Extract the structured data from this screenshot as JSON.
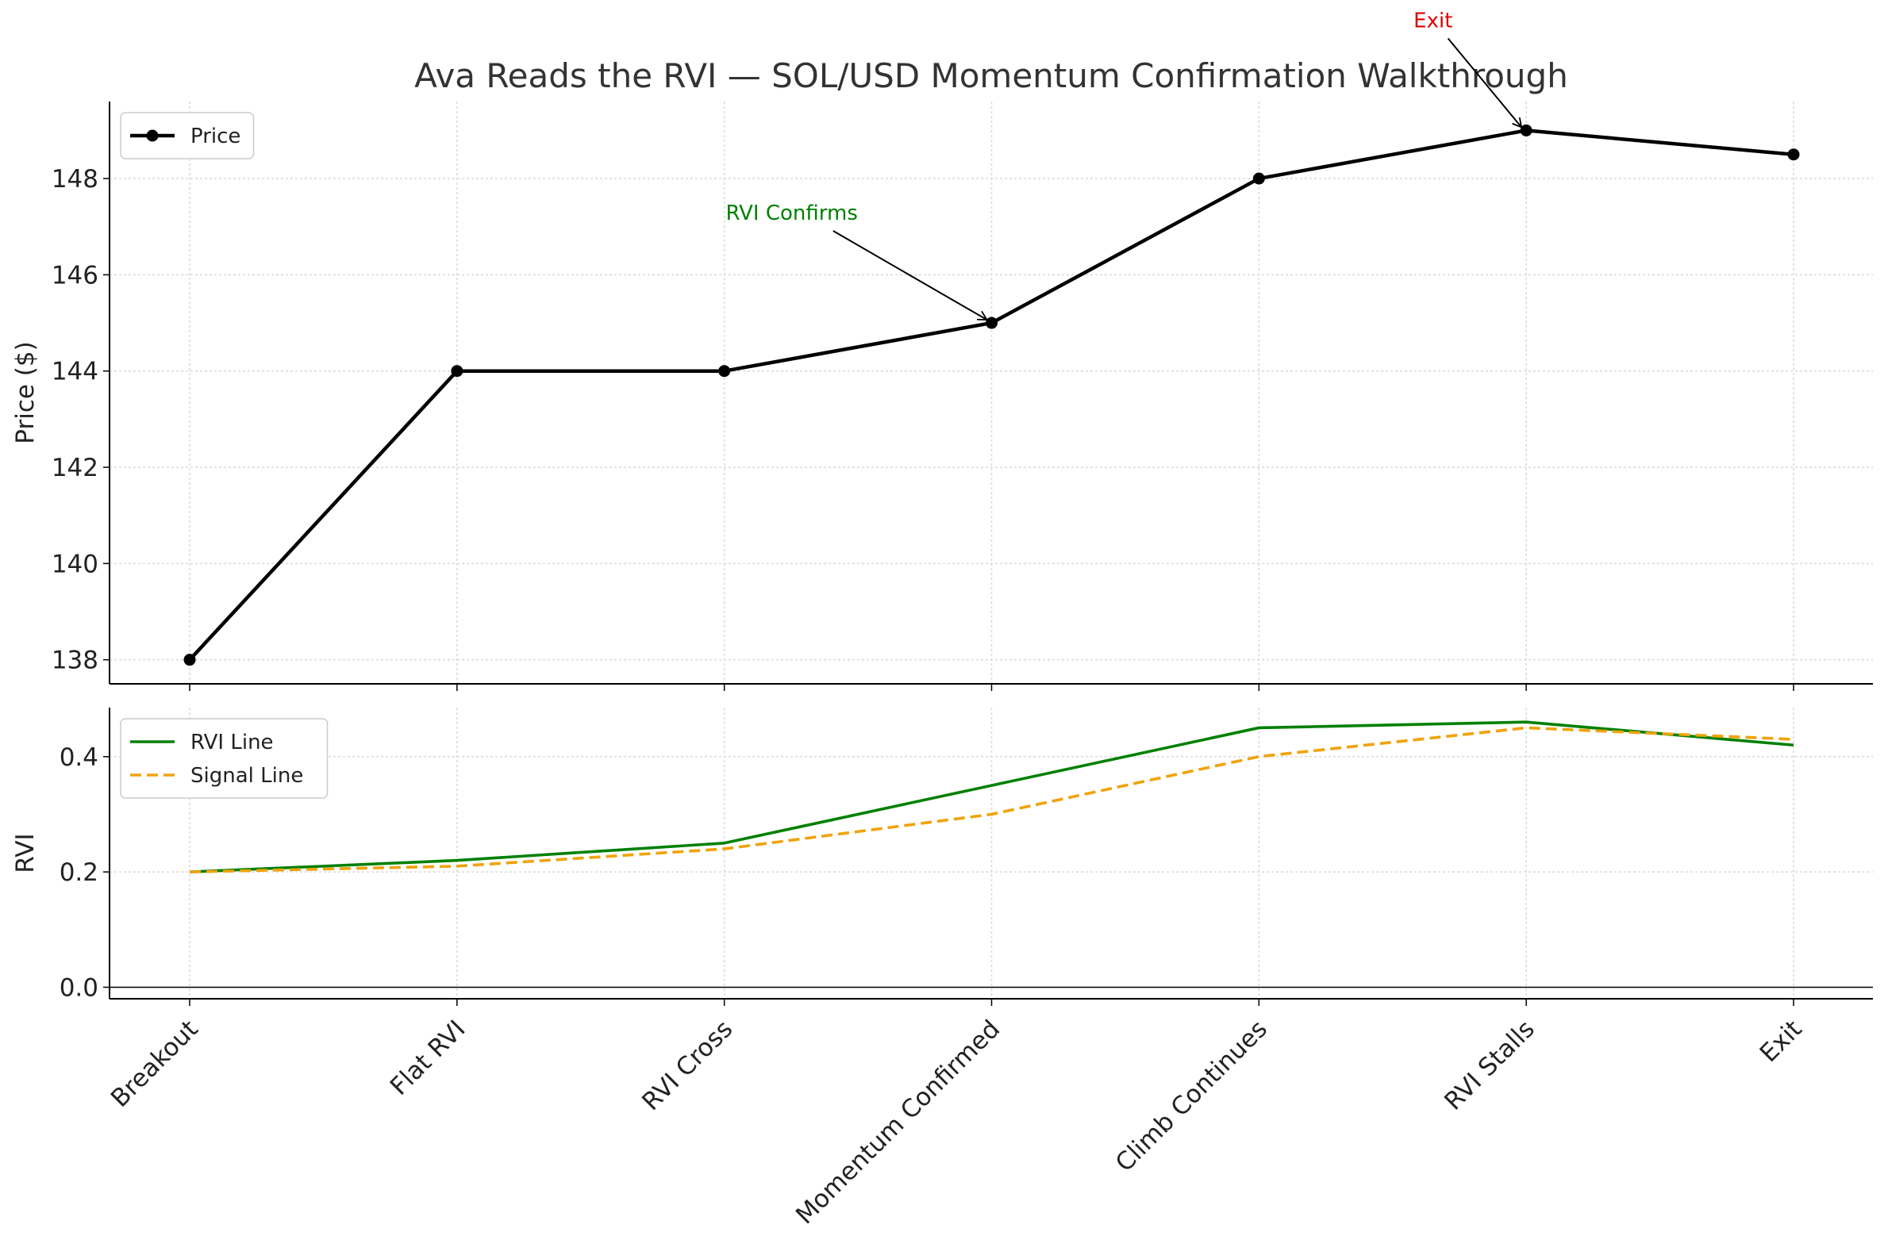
{
  "chart_data": {
    "type": "line",
    "title": "Ava Reads the RVI — SOL/USD Momentum Confirmation Walkthrough",
    "categories": [
      "Breakout",
      "Flat RVI",
      "RVI Cross",
      "Momentum Confirmed",
      "Climb Continues",
      "RVI Stalls",
      "Exit"
    ],
    "grid": true,
    "panels": [
      {
        "ylabel": "Price ($)",
        "ylim": [
          137.5,
          149.6
        ],
        "yticks": [
          138,
          140,
          142,
          144,
          146,
          148
        ],
        "legend_position": "upper-left",
        "series": [
          {
            "name": "Price",
            "values": [
              138,
              144,
              144,
              145,
              148,
              149,
              148.5
            ],
            "color": "#000000",
            "style": "solid",
            "markers": true
          }
        ],
        "annotations": [
          {
            "text": "RVI Confirms",
            "target_index": 3,
            "target_value": 145,
            "color": "#008000"
          },
          {
            "text": "Exit",
            "target_index": 5,
            "target_value": 149,
            "color": "#dd0000"
          }
        ]
      },
      {
        "ylabel": "RVI",
        "ylim": [
          -0.02,
          0.485
        ],
        "yticks": [
          "0.0",
          "0.2",
          "0.4"
        ],
        "ytick_values": [
          0.0,
          0.2,
          0.4
        ],
        "zero_line": true,
        "legend_position": "upper-left",
        "series": [
          {
            "name": "RVI Line",
            "values": [
              0.2,
              0.22,
              0.25,
              0.35,
              0.45,
              0.46,
              0.42
            ],
            "color": "#008000",
            "style": "solid",
            "markers": false
          },
          {
            "name": "Signal Line",
            "values": [
              0.2,
              0.21,
              0.24,
              0.3,
              0.4,
              0.45,
              0.43
            ],
            "color": "#f0a30a",
            "style": "dashed",
            "markers": false
          }
        ],
        "annotations": []
      }
    ]
  }
}
